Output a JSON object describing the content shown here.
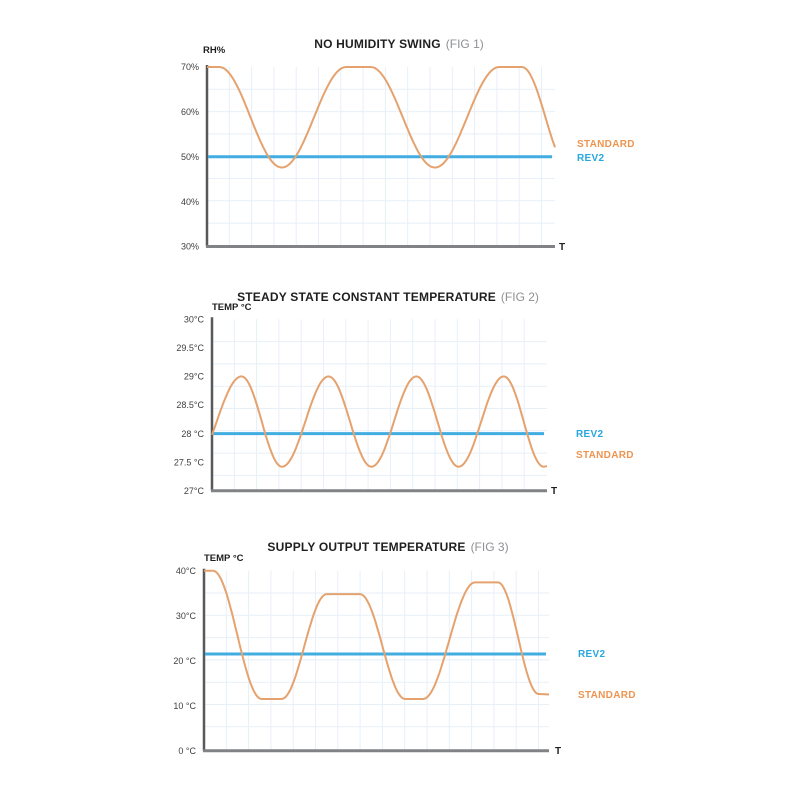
{
  "page": {
    "background": "#FFFFFF"
  },
  "colors": {
    "standard_line": "#E5A26E",
    "standard_label": "#EE9451",
    "rev2_line": "#41ADE1",
    "rev2_label": "#27A7DD",
    "grid": "#E7EFF8",
    "y_axis": "#58595B",
    "x_axis": "#808285",
    "title": "#1F1F1F",
    "fig_label": "#8E9093"
  },
  "chart_data": [
    {
      "type": "line",
      "title": "NO HUMIDITY SWING",
      "fig_label": "(FIG 1)",
      "ylabel": "RH%",
      "xlabel": "T",
      "ylim": [
        30,
        70
      ],
      "yticks": [
        "70%",
        "60%",
        "50%",
        "40%",
        "30%"
      ],
      "ytick_values": [
        70,
        60,
        50,
        40,
        30
      ],
      "grid": true,
      "legend_position": "right",
      "series": [
        {
          "name": "STANDARD",
          "shape": "wave",
          "color": "#E5A26E",
          "description": "oscillates between about 47.5% and 70% RH",
          "keypoints": [
            [
              0,
              70
            ],
            [
              0.035,
              70
            ],
            [
              0.215,
              47.6
            ],
            [
              0.4,
              70
            ],
            [
              0.47,
              70
            ],
            [
              0.655,
              47.6
            ],
            [
              0.84,
              70
            ],
            [
              0.905,
              70
            ],
            [
              1.04,
              47.6
            ]
          ]
        },
        {
          "name": "REV2",
          "shape": "flat",
          "color": "#41ADE1",
          "value": 50
        }
      ]
    },
    {
      "type": "line",
      "title": "STEADY STATE CONSTANT TEMPERATURE",
      "fig_label": "(FIG 2)",
      "ylabel": "TEMP °C",
      "xlabel": "T",
      "ylim": [
        27,
        30
      ],
      "yticks": [
        "30°C",
        "29.5°C",
        "29°C",
        "28.5°C",
        "28 °C",
        "27.5 °C",
        "27°C"
      ],
      "ytick_values": [
        30,
        29.5,
        29,
        28.5,
        28,
        27.5,
        27
      ],
      "grid": true,
      "legend_position": "right",
      "series": [
        {
          "name": "STANDARD",
          "shape": "wave",
          "color": "#E5A26E",
          "description": "oscillates between about 27.4°C and 29°C",
          "keypoints": [
            [
              -0.06,
              27.42
            ],
            [
              0.088,
              29
            ],
            [
              0.209,
              27.42
            ],
            [
              0.348,
              29
            ],
            [
              0.476,
              27.42
            ],
            [
              0.61,
              29
            ],
            [
              0.736,
              27.42
            ],
            [
              0.871,
              29
            ],
            [
              0.99,
              27.42
            ],
            [
              1.0,
              27.43
            ]
          ]
        },
        {
          "name": "REV2",
          "shape": "flat",
          "color": "#41ADE1",
          "value": 28
        }
      ]
    },
    {
      "type": "line",
      "title": "SUPPLY OUTPUT TEMPERATURE",
      "fig_label": "(FIG 3)",
      "ylabel": "TEMP °C",
      "xlabel": "T",
      "ylim": [
        0,
        40
      ],
      "yticks": [
        "40°C",
        "30°C",
        "20 °C",
        "10 °C",
        "0 °C"
      ],
      "ytick_values": [
        40,
        30,
        20,
        10,
        0
      ],
      "grid": true,
      "legend_position": "right",
      "series": [
        {
          "name": "STANDARD",
          "shape": "wave",
          "color": "#E5A26E",
          "description": "swings between about 11.5°C and peaks of 40, 35 and 37.5°C",
          "keypoints": [
            [
              0,
              40
            ],
            [
              0.026,
              40
            ],
            [
              0.167,
              11.5
            ],
            [
              0.225,
              11.5
            ],
            [
              0.356,
              34.8
            ],
            [
              0.452,
              34.8
            ],
            [
              0.583,
              11.5
            ],
            [
              0.635,
              11.5
            ],
            [
              0.786,
              37.4
            ],
            [
              0.852,
              37.4
            ],
            [
              0.97,
              12.6
            ],
            [
              1.0,
              12.5
            ]
          ]
        },
        {
          "name": "REV2",
          "shape": "flat",
          "color": "#41ADE1",
          "value": 21.5
        }
      ]
    }
  ]
}
